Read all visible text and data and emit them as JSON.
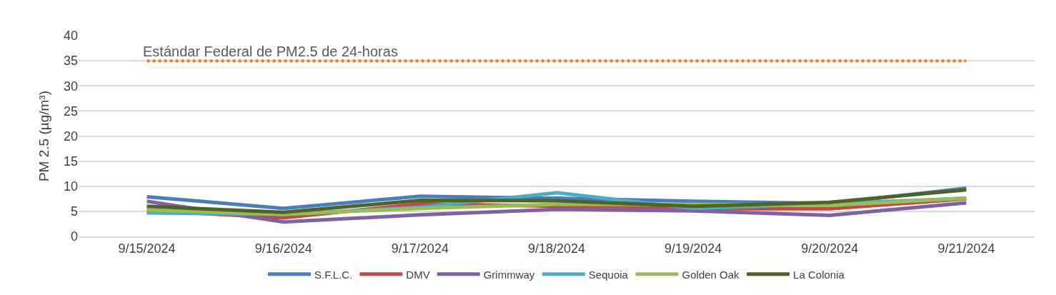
{
  "chart_data": {
    "type": "line",
    "ylabel": "PM 2.5 (µg/m³)",
    "categories": [
      "9/15/2024",
      "9/16/2024",
      "9/17/2024",
      "9/18/2024",
      "9/19/2024",
      "9/20/2024",
      "9/21/2024"
    ],
    "series": [
      {
        "name": "S.F.L.C.",
        "color": "#4a7ebb",
        "values": [
          7.9,
          5.6,
          8.0,
          7.6,
          7.0,
          6.6,
          9.6
        ]
      },
      {
        "name": "DMV",
        "color": "#be4b48",
        "values": [
          5.2,
          3.7,
          6.5,
          6.0,
          5.5,
          5.5,
          7.5
        ]
      },
      {
        "name": "Grimmway",
        "color": "#7e62a1",
        "values": [
          7.0,
          2.9,
          4.3,
          5.4,
          5.1,
          4.2,
          6.7
        ]
      },
      {
        "name": "Sequoia",
        "color": "#4bacc6",
        "values": [
          4.7,
          4.4,
          5.8,
          8.7,
          5.6,
          6.5,
          7.6
        ]
      },
      {
        "name": "Golden Oak",
        "color": "#9bbb59",
        "values": [
          5.3,
          4.4,
          5.6,
          6.4,
          6.4,
          6.2,
          7.6
        ]
      },
      {
        "name": "La Colonia",
        "color": "#4f6228",
        "values": [
          6.0,
          4.8,
          7.2,
          7.1,
          6.0,
          6.8,
          9.3
        ]
      }
    ],
    "ref_lines": [
      {
        "axis": "y",
        "value": 35,
        "label": "Estándar Federal de PM2.5 de 24-horas",
        "color": "#ed7d31",
        "line_style": "dotted"
      }
    ],
    "ylim": [
      0,
      40
    ],
    "yticks": [
      0,
      5,
      10,
      15,
      20,
      25,
      30,
      35,
      40
    ],
    "grid": "y",
    "legend": "bottom",
    "marker": "none",
    "line_style": "solid"
  }
}
